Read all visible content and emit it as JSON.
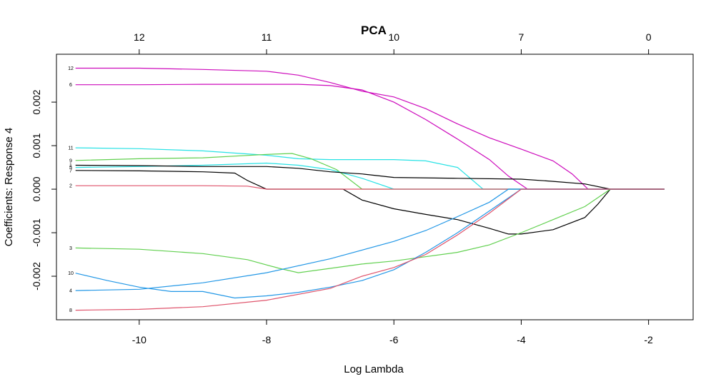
{
  "chart_data": {
    "type": "line",
    "title": "PCA",
    "xlabel": "Log Lambda",
    "ylabel": "Coefficients: Response 4",
    "xlim": [
      -11.3,
      -1.3
    ],
    "ylim": [
      -0.003,
      0.0031
    ],
    "grid": false,
    "legend": "none",
    "x_ticks": [
      {
        "value": -10,
        "label": "-10"
      },
      {
        "value": -8,
        "label": "-8"
      },
      {
        "value": -6,
        "label": "-6"
      },
      {
        "value": -4,
        "label": "-4"
      },
      {
        "value": -2,
        "label": "-2"
      }
    ],
    "y_ticks": [
      {
        "value": -0.002,
        "label": "-0.002"
      },
      {
        "value": -0.001,
        "label": "-0.001"
      },
      {
        "value": 0.0,
        "label": "0.000"
      },
      {
        "value": 0.001,
        "label": "0.001"
      },
      {
        "value": 0.002,
        "label": "0.002"
      }
    ],
    "top_axis": [
      {
        "value": -10,
        "label": "12"
      },
      {
        "value": -8,
        "label": "11"
      },
      {
        "value": -6,
        "label": "10"
      },
      {
        "value": -4,
        "label": "7"
      },
      {
        "value": -2,
        "label": "0"
      }
    ],
    "series": [
      {
        "label": "12",
        "color": "#cd0bbc",
        "points": [
          [
            -11,
            0.00278
          ],
          [
            -10,
            0.00278
          ],
          [
            -9,
            0.00275
          ],
          [
            -8,
            0.00271
          ],
          [
            -7.5,
            0.00262
          ],
          [
            -7,
            0.00245
          ],
          [
            -6.5,
            0.00225
          ],
          [
            -6,
            0.00212
          ],
          [
            -5.5,
            0.00185
          ],
          [
            -5,
            0.0015
          ],
          [
            -4.5,
            0.00118
          ],
          [
            -4,
            0.00092
          ],
          [
            -3.5,
            0.00065
          ],
          [
            -3.2,
            0.00035
          ],
          [
            -2.95,
            0.0
          ],
          [
            -1.75,
            0.0
          ]
        ]
      },
      {
        "label": "6",
        "color": "#cd0bbc",
        "points": [
          [
            -11,
            0.0024
          ],
          [
            -10,
            0.0024
          ],
          [
            -9,
            0.00241
          ],
          [
            -8,
            0.00241
          ],
          [
            -7.5,
            0.00241
          ],
          [
            -7,
            0.00238
          ],
          [
            -6.5,
            0.00228
          ],
          [
            -6,
            0.002
          ],
          [
            -5.5,
            0.0016
          ],
          [
            -5,
            0.00115
          ],
          [
            -4.5,
            0.00068
          ],
          [
            -4.2,
            0.0003
          ],
          [
            -3.9,
            0.0
          ],
          [
            -1.75,
            0.0
          ]
        ]
      },
      {
        "label": "11",
        "color": "#28e2e5",
        "points": [
          [
            -11,
            0.00095
          ],
          [
            -10,
            0.00093
          ],
          [
            -9,
            0.00088
          ],
          [
            -8,
            0.00078
          ],
          [
            -7.5,
            0.0007
          ],
          [
            -7,
            0.00068
          ],
          [
            -6.5,
            0.00068
          ],
          [
            -6,
            0.00068
          ],
          [
            -5.5,
            0.00065
          ],
          [
            -5,
            0.0005
          ],
          [
            -4.6,
            0.0
          ],
          [
            -1.75,
            0.0
          ]
        ]
      },
      {
        "label": "9",
        "color": "#61d04f",
        "points": [
          [
            -11,
            0.00066
          ],
          [
            -10,
            0.0007
          ],
          [
            -9,
            0.00072
          ],
          [
            -8,
            0.0008
          ],
          [
            -7.6,
            0.00082
          ],
          [
            -7.3,
            0.0007
          ],
          [
            -6.9,
            0.00045
          ],
          [
            -6.5,
            0.0
          ],
          [
            -1.75,
            0.0
          ]
        ]
      },
      {
        "label": "5",
        "color": "#28e2e5",
        "points": [
          [
            -11,
            0.0005
          ],
          [
            -10,
            0.00052
          ],
          [
            -9,
            0.00055
          ],
          [
            -8,
            0.0006
          ],
          [
            -7.5,
            0.00055
          ],
          [
            -7,
            0.00045
          ],
          [
            -6.5,
            0.00025
          ],
          [
            -6,
            0.0
          ],
          [
            -1.75,
            0.0
          ]
        ]
      },
      {
        "label": "1",
        "color": "#000000",
        "points": [
          [
            -11,
            0.00055
          ],
          [
            -10,
            0.00054
          ],
          [
            -9,
            0.00052
          ],
          [
            -8,
            0.00052
          ],
          [
            -7.5,
            0.00048
          ],
          [
            -7,
            0.0004
          ],
          [
            -6.5,
            0.00035
          ],
          [
            -6,
            0.00027
          ],
          [
            -5,
            0.00025
          ],
          [
            -4,
            0.00023
          ],
          [
            -3.5,
            0.00018
          ],
          [
            -3,
            0.00012
          ],
          [
            -2.6,
            0.0
          ],
          [
            -1.75,
            0.0
          ]
        ]
      },
      {
        "label": "7",
        "color": "#000000",
        "points": [
          [
            -11,
            0.00043
          ],
          [
            -10,
            0.00042
          ],
          [
            -9,
            0.0004
          ],
          [
            -8.5,
            0.00037
          ],
          [
            -8.3,
            0.0002
          ],
          [
            -8,
            0.0
          ],
          [
            -6.8,
            0.0
          ],
          [
            -6.5,
            -0.00025
          ],
          [
            -6,
            -0.00045
          ],
          [
            -5.5,
            -0.00058
          ],
          [
            -5,
            -0.0007
          ],
          [
            -4.5,
            -0.0009
          ],
          [
            -4.2,
            -0.00103
          ],
          [
            -4,
            -0.00103
          ],
          [
            -3.5,
            -0.00093
          ],
          [
            -3,
            -0.00065
          ],
          [
            -2.8,
            -0.00035
          ],
          [
            -2.6,
            0.0
          ],
          [
            -1.75,
            0.0
          ]
        ]
      },
      {
        "label": "2",
        "color": "#df536b",
        "points": [
          [
            -11,
            8e-05
          ],
          [
            -9,
            8e-05
          ],
          [
            -8.3,
            7e-05
          ],
          [
            -8,
            0.0
          ],
          [
            -1.75,
            0.0
          ]
        ]
      },
      {
        "label": "3",
        "color": "#61d04f",
        "points": [
          [
            -11,
            -0.00135
          ],
          [
            -10,
            -0.00138
          ],
          [
            -9,
            -0.00148
          ],
          [
            -8.3,
            -0.00162
          ],
          [
            -7.8,
            -0.00182
          ],
          [
            -7.5,
            -0.00192
          ],
          [
            -7,
            -0.00182
          ],
          [
            -6.5,
            -0.00172
          ],
          [
            -6,
            -0.00165
          ],
          [
            -5,
            -0.00145
          ],
          [
            -4.5,
            -0.00128
          ],
          [
            -4,
            -0.001
          ],
          [
            -3.5,
            -0.0007
          ],
          [
            -3,
            -0.0004
          ],
          [
            -2.6,
            0.0
          ],
          [
            -1.75,
            0.0
          ]
        ]
      },
      {
        "label": "10",
        "color": "#2297e6",
        "points": [
          [
            -11,
            -0.00193
          ],
          [
            -10.5,
            -0.0021
          ],
          [
            -10,
            -0.00225
          ],
          [
            -9.5,
            -0.00235
          ],
          [
            -9,
            -0.00235
          ],
          [
            -8.5,
            -0.0025
          ],
          [
            -8,
            -0.00245
          ],
          [
            -7.5,
            -0.00237
          ],
          [
            -7,
            -0.00225
          ],
          [
            -6.5,
            -0.0021
          ],
          [
            -6,
            -0.00185
          ],
          [
            -5.5,
            -0.00145
          ],
          [
            -5,
            -0.001
          ],
          [
            -4.5,
            -0.0005
          ],
          [
            -4,
            0.0
          ],
          [
            -1.75,
            0.0
          ]
        ]
      },
      {
        "label": "4",
        "color": "#2297e6",
        "points": [
          [
            -11,
            -0.00233
          ],
          [
            -10,
            -0.0023
          ],
          [
            -9,
            -0.00215
          ],
          [
            -8,
            -0.00192
          ],
          [
            -7,
            -0.0016
          ],
          [
            -6,
            -0.0012
          ],
          [
            -5.5,
            -0.00095
          ],
          [
            -5,
            -0.00063
          ],
          [
            -4.5,
            -0.0003
          ],
          [
            -4.2,
            0.0
          ],
          [
            -1.75,
            0.0
          ]
        ]
      },
      {
        "label": "8",
        "color": "#df536b",
        "points": [
          [
            -11,
            -0.00278
          ],
          [
            -10,
            -0.00276
          ],
          [
            -9,
            -0.0027
          ],
          [
            -8,
            -0.00255
          ],
          [
            -7,
            -0.00228
          ],
          [
            -6.5,
            -0.002
          ],
          [
            -6,
            -0.0018
          ],
          [
            -5.5,
            -0.0015
          ],
          [
            -5,
            -0.00105
          ],
          [
            -4.5,
            -0.00055
          ],
          [
            -4,
            0.0
          ],
          [
            -1.75,
            0.0
          ]
        ]
      }
    ]
  }
}
